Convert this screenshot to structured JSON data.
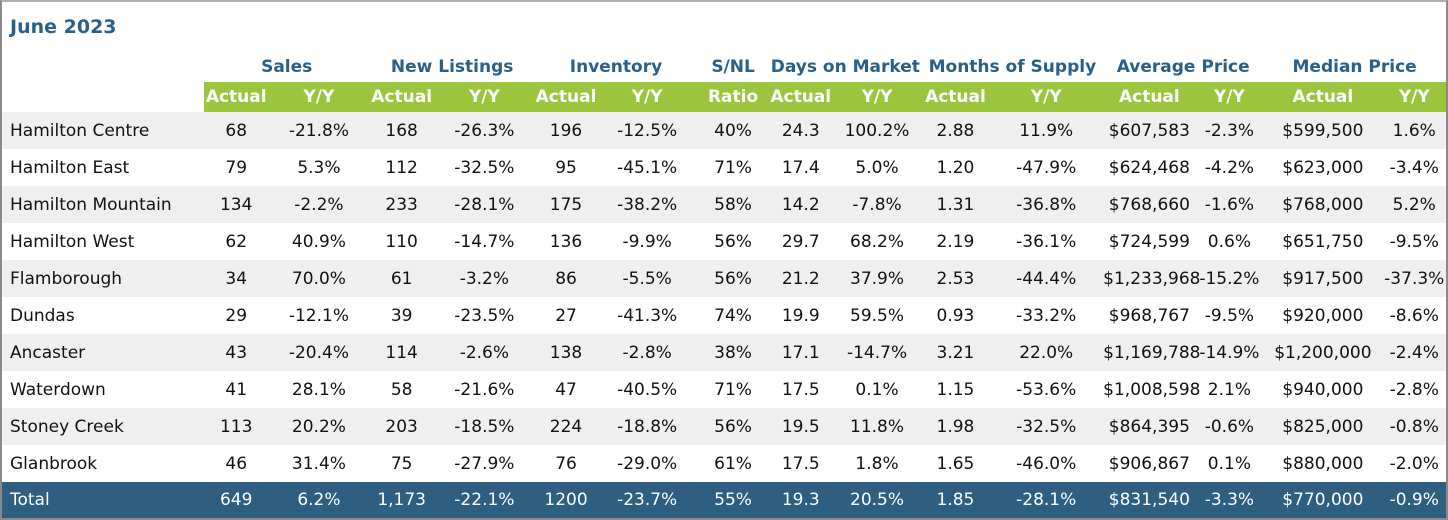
{
  "title": "June 2023",
  "groups": [
    "Sales",
    "New Listings",
    "Inventory",
    "S/NL",
    "Days on Market",
    "Months of Supply",
    "Average Price",
    "Median Price"
  ],
  "subheaders": [
    "Actual",
    "Y/Y",
    "Actual",
    "Y/Y",
    "Actual",
    "Y/Y",
    "Ratio",
    "Actual",
    "Y/Y",
    "Actual",
    "Y/Y",
    "Actual",
    "Y/Y",
    "Actual",
    "Y/Y"
  ],
  "colors": {
    "title": "#2a5f8a",
    "subheader_bg": "#9bc53d",
    "total_bg": "#2e5e80",
    "row_shade": "#efefef"
  },
  "chart_data": {
    "type": "table",
    "title": "June 2023",
    "columns": [
      "Sales Actual",
      "Sales Y/Y",
      "New Listings Actual",
      "New Listings Y/Y",
      "Inventory Actual",
      "Inventory Y/Y",
      "S/NL Ratio",
      "Days on Market Actual",
      "Days on Market Y/Y",
      "Months of Supply Actual",
      "Months of Supply Y/Y",
      "Average Price Actual",
      "Average Price Y/Y",
      "Median Price Actual",
      "Median Price Y/Y"
    ],
    "rows": [
      {
        "name": "Hamilton Centre",
        "values": [
          "68",
          "-21.8%",
          "168",
          "-26.3%",
          "196",
          "-12.5%",
          "40%",
          "24.3",
          "100.2%",
          "2.88",
          "11.9%",
          "$607,583",
          "-2.3%",
          "$599,500",
          "1.6%"
        ]
      },
      {
        "name": "Hamilton East",
        "values": [
          "79",
          "5.3%",
          "112",
          "-32.5%",
          "95",
          "-45.1%",
          "71%",
          "17.4",
          "5.0%",
          "1.20",
          "-47.9%",
          "$624,468",
          "-4.2%",
          "$623,000",
          "-3.4%"
        ]
      },
      {
        "name": "Hamilton Mountain",
        "values": [
          "134",
          "-2.2%",
          "233",
          "-28.1%",
          "175",
          "-38.2%",
          "58%",
          "14.2",
          "-7.8%",
          "1.31",
          "-36.8%",
          "$768,660",
          "-1.6%",
          "$768,000",
          "5.2%"
        ]
      },
      {
        "name": "Hamilton West",
        "values": [
          "62",
          "40.9%",
          "110",
          "-14.7%",
          "136",
          "-9.9%",
          "56%",
          "29.7",
          "68.2%",
          "2.19",
          "-36.1%",
          "$724,599",
          "0.6%",
          "$651,750",
          "-9.5%"
        ]
      },
      {
        "name": "Flamborough",
        "values": [
          "34",
          "70.0%",
          "61",
          "-3.2%",
          "86",
          "-5.5%",
          "56%",
          "21.2",
          "37.9%",
          "2.53",
          "-44.4%",
          "$1,233,968",
          "-15.2%",
          "$917,500",
          "-37.3%"
        ]
      },
      {
        "name": "Dundas",
        "values": [
          "29",
          "-12.1%",
          "39",
          "-23.5%",
          "27",
          "-41.3%",
          "74%",
          "19.9",
          "59.5%",
          "0.93",
          "-33.2%",
          "$968,767",
          "-9.5%",
          "$920,000",
          "-8.6%"
        ]
      },
      {
        "name": "Ancaster",
        "values": [
          "43",
          "-20.4%",
          "114",
          "-2.6%",
          "138",
          "-2.8%",
          "38%",
          "17.1",
          "-14.7%",
          "3.21",
          "22.0%",
          "$1,169,788",
          "-14.9%",
          "$1,200,000",
          "-2.4%"
        ]
      },
      {
        "name": "Waterdown",
        "values": [
          "41",
          "28.1%",
          "58",
          "-21.6%",
          "47",
          "-40.5%",
          "71%",
          "17.5",
          "0.1%",
          "1.15",
          "-53.6%",
          "$1,008,598",
          "2.1%",
          "$940,000",
          "-2.8%"
        ]
      },
      {
        "name": "Stoney Creek",
        "values": [
          "113",
          "20.2%",
          "203",
          "-18.5%",
          "224",
          "-18.8%",
          "56%",
          "19.5",
          "11.8%",
          "1.98",
          "-32.5%",
          "$864,395",
          "-0.6%",
          "$825,000",
          "-0.8%"
        ]
      },
      {
        "name": "Glanbrook",
        "values": [
          "46",
          "31.4%",
          "75",
          "-27.9%",
          "76",
          "-29.0%",
          "61%",
          "17.5",
          "1.8%",
          "1.65",
          "-46.0%",
          "$906,867",
          "0.1%",
          "$880,000",
          "-2.0%"
        ]
      }
    ],
    "total": {
      "name": "Total",
      "values": [
        "649",
        "6.2%",
        "1,173",
        "-22.1%",
        "1200",
        "-23.7%",
        "55%",
        "19.3",
        "20.5%",
        "1.85",
        "-28.1%",
        "$831,540",
        "-3.3%",
        "$770,000",
        "-0.9%"
      ]
    }
  }
}
